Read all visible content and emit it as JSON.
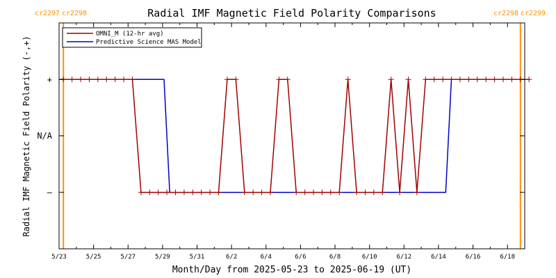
{
  "chart_data": {
    "type": "line",
    "title": "Radial IMF Magnetic Field Polarity Comparisons",
    "xlabel": "Month/Day from 2025-05-23 to 2025-06-19 (UT)",
    "ylabel": "Radial IMF Magnetic Field Polarity (-,+)",
    "x_tick_labels": [
      "5/23",
      "5/25",
      "5/27",
      "5/29",
      "5/31",
      "6/2",
      "6/4",
      "6/6",
      "6/8",
      "6/10",
      "6/12",
      "6/14",
      "6/16",
      "6/18"
    ],
    "y_tick_labels": [
      "+",
      "N/A",
      "–"
    ],
    "y_levels": [
      1,
      0,
      -1
    ],
    "xlim": [
      "2025-05-23T00:00",
      "2025-06-19T00:00"
    ],
    "ylim": [
      -2,
      2
    ],
    "carrington_left": [
      "cr2297",
      "cr2298"
    ],
    "carrington_right": [
      "cr2298",
      "cr2299"
    ],
    "carrington_boundaries": [
      "2025-05-23T06:00",
      "2025-06-18T18:00"
    ],
    "legend_position": "top-left",
    "colors": {
      "omni": "#a00000",
      "mas": "#0000c8",
      "boundary": "#ff9000",
      "label": "#ff9000"
    },
    "series": [
      {
        "name": "OMNI_M (12-hr avg)",
        "key": "omni",
        "points": [
          [
            "2025-05-23T06:00",
            1
          ],
          [
            "2025-05-23T18:00",
            1
          ],
          [
            "2025-05-24T06:00",
            1
          ],
          [
            "2025-05-24T18:00",
            1
          ],
          [
            "2025-05-25T06:00",
            1
          ],
          [
            "2025-05-25T18:00",
            1
          ],
          [
            "2025-05-26T06:00",
            1
          ],
          [
            "2025-05-26T18:00",
            1
          ],
          [
            "2025-05-27T06:00",
            1
          ],
          [
            "2025-05-27T18:00",
            -1
          ],
          [
            "2025-05-28T06:00",
            -1
          ],
          [
            "2025-05-28T18:00",
            -1
          ],
          [
            "2025-05-29T06:00",
            -1
          ],
          [
            "2025-05-29T18:00",
            -1
          ],
          [
            "2025-05-30T06:00",
            -1
          ],
          [
            "2025-05-30T18:00",
            -1
          ],
          [
            "2025-05-31T06:00",
            -1
          ],
          [
            "2025-05-31T18:00",
            -1
          ],
          [
            "2025-06-01T06:00",
            -1
          ],
          [
            "2025-06-01T18:00",
            1
          ],
          [
            "2025-06-02T06:00",
            1
          ],
          [
            "2025-06-02T18:00",
            -1
          ],
          [
            "2025-06-03T06:00",
            -1
          ],
          [
            "2025-06-03T18:00",
            -1
          ],
          [
            "2025-06-04T06:00",
            -1
          ],
          [
            "2025-06-04T18:00",
            1
          ],
          [
            "2025-06-05T06:00",
            1
          ],
          [
            "2025-06-05T18:00",
            -1
          ],
          [
            "2025-06-06T06:00",
            -1
          ],
          [
            "2025-06-06T18:00",
            -1
          ],
          [
            "2025-06-07T06:00",
            -1
          ],
          [
            "2025-06-07T18:00",
            -1
          ],
          [
            "2025-06-08T06:00",
            -1
          ],
          [
            "2025-06-08T18:00",
            1
          ],
          [
            "2025-06-09T06:00",
            -1
          ],
          [
            "2025-06-09T18:00",
            -1
          ],
          [
            "2025-06-10T06:00",
            -1
          ],
          [
            "2025-06-10T18:00",
            -1
          ],
          [
            "2025-06-11T06:00",
            1
          ],
          [
            "2025-06-11T18:00",
            -1
          ],
          [
            "2025-06-12T06:00",
            1
          ],
          [
            "2025-06-12T18:00",
            -1
          ],
          [
            "2025-06-13T06:00",
            1
          ],
          [
            "2025-06-13T18:00",
            1
          ],
          [
            "2025-06-14T06:00",
            1
          ],
          [
            "2025-06-14T18:00",
            1
          ],
          [
            "2025-06-15T06:00",
            1
          ],
          [
            "2025-06-15T18:00",
            1
          ],
          [
            "2025-06-16T06:00",
            1
          ],
          [
            "2025-06-16T18:00",
            1
          ],
          [
            "2025-06-17T06:00",
            1
          ],
          [
            "2025-06-17T18:00",
            1
          ],
          [
            "2025-06-18T06:00",
            1
          ],
          [
            "2025-06-18T18:00",
            1
          ],
          [
            "2025-06-19T06:00",
            1
          ]
        ]
      },
      {
        "name": "Predictive Science MAS Model",
        "key": "mas",
        "points": [
          [
            "2025-05-23T00:00",
            1
          ],
          [
            "2025-05-29T02:00",
            1
          ],
          [
            "2025-05-29T10:00",
            -1
          ],
          [
            "2025-06-14T10:00",
            -1
          ],
          [
            "2025-06-14T18:00",
            1
          ],
          [
            "2025-06-19T00:00",
            1
          ]
        ]
      }
    ]
  }
}
